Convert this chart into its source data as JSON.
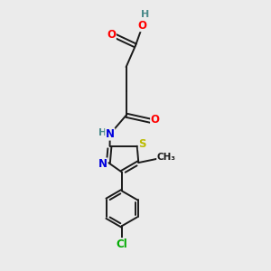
{
  "background_color": "#ebebeb",
  "bond_color": "#1a1a1a",
  "atom_colors": {
    "O": "#ff0000",
    "N": "#0000dd",
    "S": "#bbbb00",
    "Cl": "#00aa00",
    "C": "#1a1a1a",
    "H": "#4a8a8a"
  },
  "font_size": 8.5,
  "figsize": [
    3.0,
    3.0
  ],
  "dpi": 100
}
